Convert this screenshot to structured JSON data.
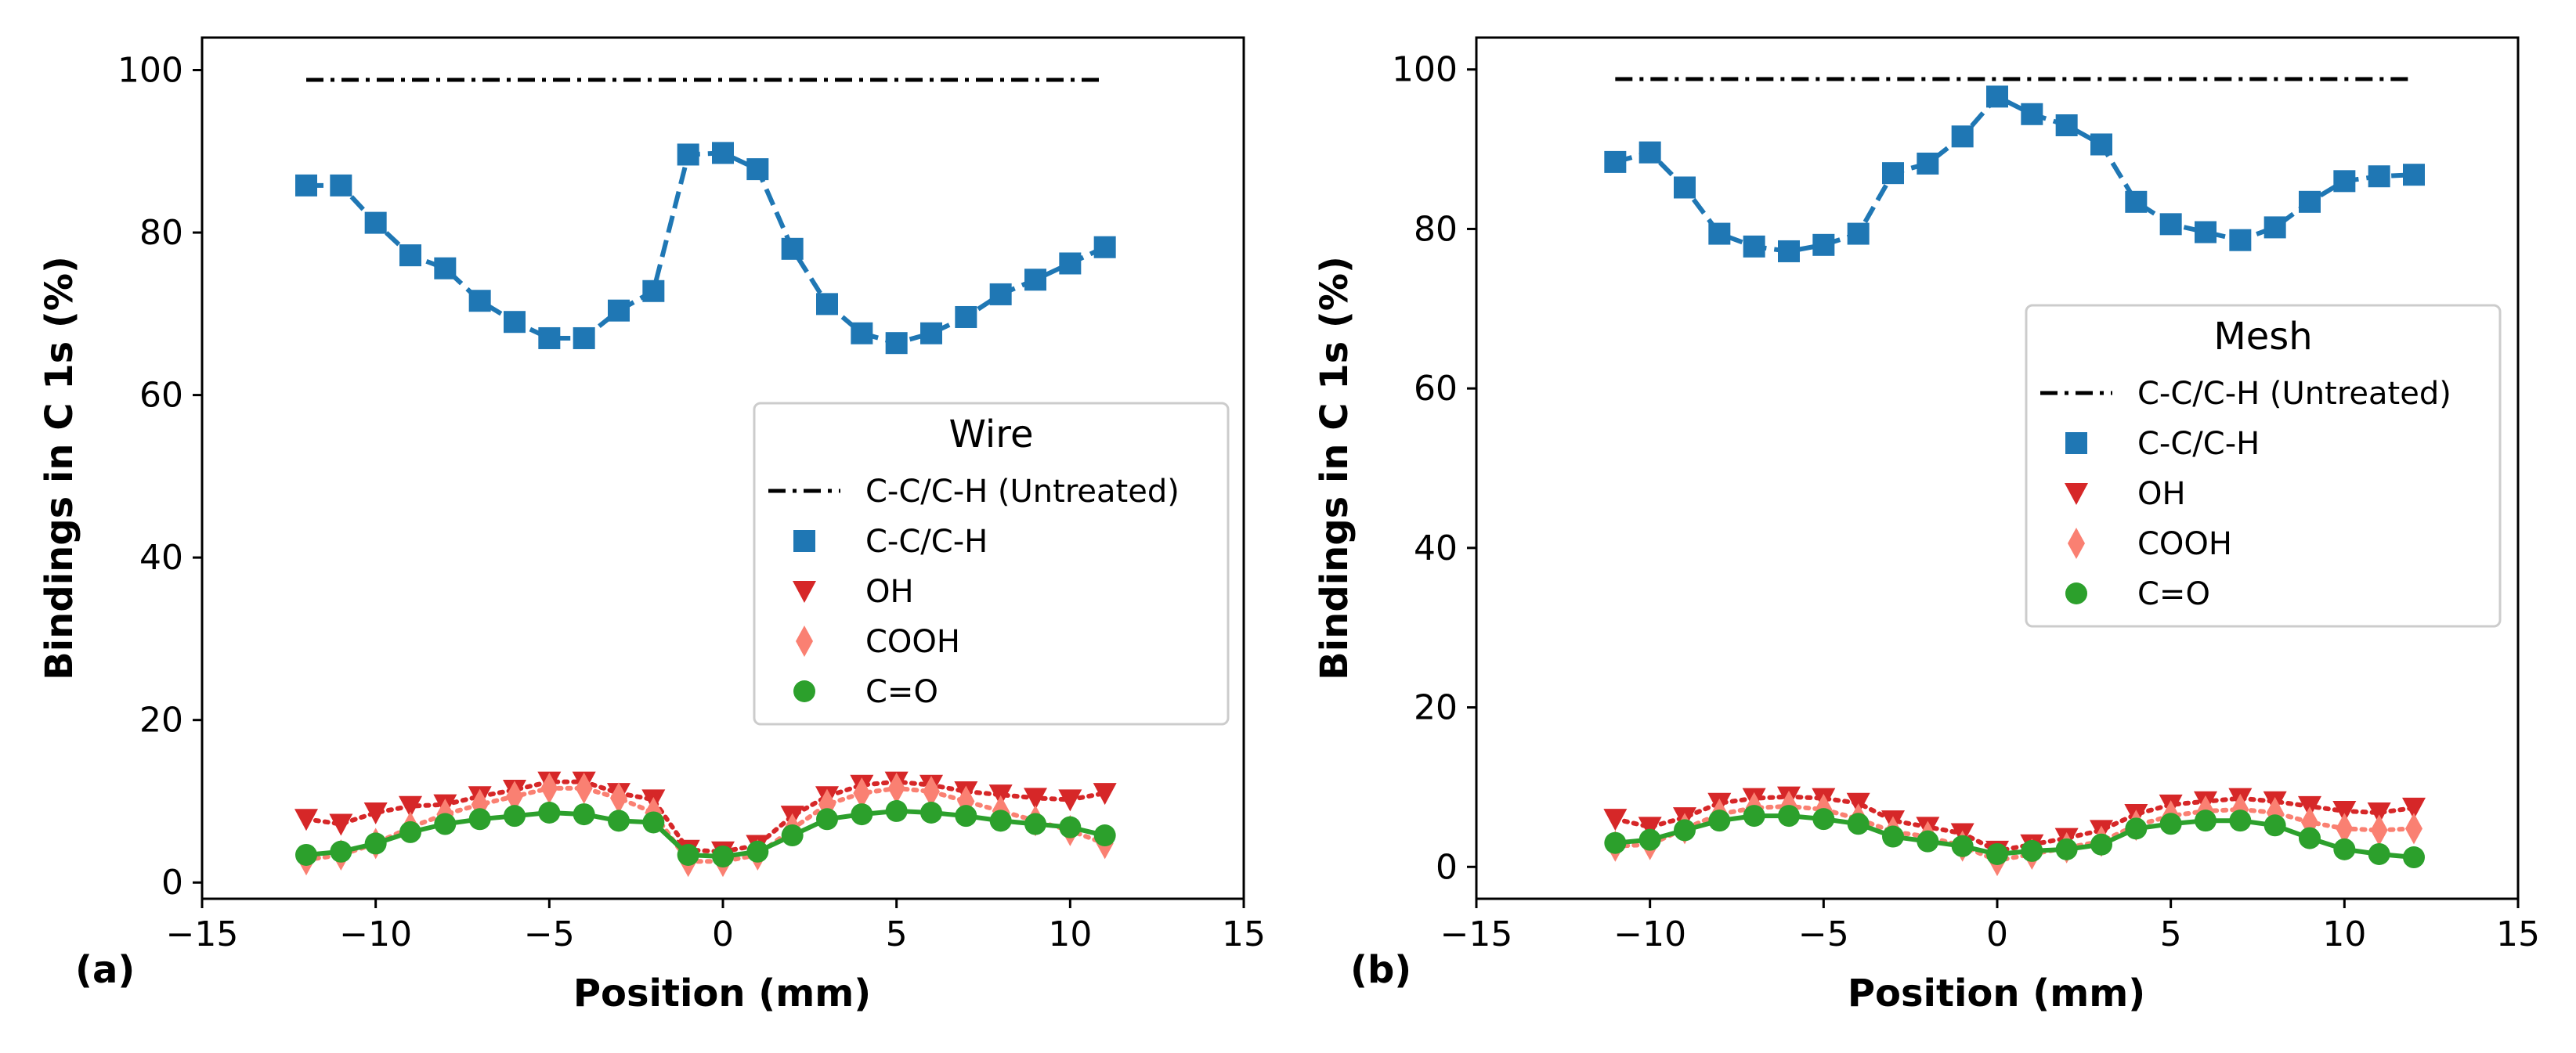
{
  "chart_data": [
    {
      "type": "line",
      "panel_label": "(a)",
      "legend_title": "Wire",
      "legend_position": "center-right",
      "xlabel": "Position (mm)",
      "ylabel": "Bindings in C 1s (%)",
      "xlim": [
        -15,
        15
      ],
      "ylim": [
        -2,
        104
      ],
      "xticks": [
        -15,
        -10,
        -5,
        0,
        5,
        10,
        15
      ],
      "yticks": [
        0,
        20,
        40,
        60,
        80,
        100
      ],
      "xtick_labels": [
        "−15",
        "−10",
        "−5",
        "0",
        "5",
        "10",
        "15"
      ],
      "ytick_labels": [
        "0",
        "20",
        "40",
        "60",
        "80",
        "100"
      ],
      "grid": false,
      "series": [
        {
          "name": "C-C/C-H (Untreated)",
          "kind": "hline",
          "color": "#000000",
          "linestyle": "dashdot",
          "x": [
            -12,
            11
          ],
          "values": [
            98.8,
            98.8
          ]
        },
        {
          "name": "C-C/C-H",
          "color": "#1f77b4",
          "marker": "square",
          "linestyle": "dashed",
          "x": [
            -12,
            -11,
            -10,
            -9,
            -8,
            -7,
            -6,
            -5,
            -4,
            -3,
            -2,
            -1,
            0,
            1,
            2,
            3,
            4,
            5,
            6,
            7,
            8,
            9,
            10,
            11
          ],
          "values": [
            85.8,
            85.8,
            81.2,
            77.2,
            75.6,
            71.6,
            69.0,
            67.0,
            67.0,
            70.4,
            72.8,
            89.6,
            89.8,
            87.8,
            78.0,
            71.2,
            67.6,
            66.4,
            67.6,
            69.6,
            72.4,
            74.2,
            76.2,
            78.2
          ]
        },
        {
          "name": "OH",
          "color": "#d62728",
          "marker": "triangle-down",
          "linestyle": "dotted",
          "x": [
            -12,
            -11,
            -10,
            -9,
            -8,
            -7,
            -6,
            -5,
            -4,
            -3,
            -2,
            -1,
            0,
            1,
            2,
            3,
            4,
            5,
            6,
            7,
            8,
            9,
            10,
            11
          ],
          "values": [
            7.8,
            7.2,
            8.6,
            9.4,
            9.6,
            10.6,
            11.4,
            12.4,
            12.4,
            11.0,
            10.2,
            4.0,
            3.8,
            4.6,
            8.2,
            10.6,
            12.0,
            12.4,
            12.0,
            11.2,
            10.8,
            10.4,
            10.2,
            11.0
          ]
        },
        {
          "name": "COOH",
          "color": "#fa8072",
          "marker": "thin-diamond",
          "linestyle": "dotted",
          "x": [
            -12,
            -11,
            -10,
            -9,
            -8,
            -7,
            -6,
            -5,
            -4,
            -3,
            -2,
            -1,
            0,
            1,
            2,
            3,
            4,
            5,
            6,
            7,
            8,
            9,
            10,
            11
          ],
          "values": [
            2.8,
            3.4,
            4.8,
            6.8,
            8.4,
            9.6,
            10.6,
            11.6,
            11.6,
            10.4,
            8.6,
            2.6,
            2.6,
            3.4,
            6.6,
            9.6,
            11.0,
            11.6,
            11.2,
            10.0,
            8.8,
            7.6,
            6.4,
            4.8
          ]
        },
        {
          "name": "C=O",
          "color": "#2ca02c",
          "marker": "circle",
          "linestyle": "solid",
          "x": [
            -12,
            -11,
            -10,
            -9,
            -8,
            -7,
            -6,
            -5,
            -4,
            -3,
            -2,
            -1,
            0,
            1,
            2,
            3,
            4,
            5,
            6,
            7,
            8,
            9,
            10,
            11
          ],
          "values": [
            3.4,
            3.8,
            4.8,
            6.2,
            7.2,
            7.8,
            8.2,
            8.6,
            8.4,
            7.6,
            7.4,
            3.4,
            3.2,
            3.8,
            5.8,
            7.8,
            8.4,
            8.8,
            8.6,
            8.2,
            7.6,
            7.2,
            6.8,
            5.8
          ]
        }
      ]
    },
    {
      "type": "line",
      "panel_label": "(b)",
      "legend_title": "Mesh",
      "legend_position": "center-right",
      "xlabel": "Position (mm)",
      "ylabel": "Bindings in C 1s (%)",
      "xlim": [
        -15,
        15
      ],
      "ylim": [
        -4,
        104
      ],
      "xticks": [
        -15,
        -10,
        -5,
        0,
        5,
        10,
        15
      ],
      "yticks": [
        0,
        20,
        40,
        60,
        80,
        100
      ],
      "xtick_labels": [
        "−15",
        "−10",
        "−5",
        "0",
        "5",
        "10",
        "15"
      ],
      "ytick_labels": [
        "0",
        "20",
        "40",
        "60",
        "80",
        "100"
      ],
      "grid": false,
      "series": [
        {
          "name": "C-C/C-H (Untreated)",
          "kind": "hline",
          "color": "#000000",
          "linestyle": "dashdot",
          "x": [
            -11,
            12
          ],
          "values": [
            98.8,
            98.8
          ]
        },
        {
          "name": "C-C/C-H",
          "color": "#1f77b4",
          "marker": "square",
          "linestyle": "dashed",
          "x": [
            -11,
            -10,
            -9,
            -8,
            -7,
            -6,
            -5,
            -4,
            -3,
            -2,
            -1,
            0,
            1,
            2,
            3,
            4,
            5,
            6,
            7,
            8,
            9,
            10,
            11,
            12
          ],
          "values": [
            88.4,
            89.6,
            85.2,
            79.4,
            77.8,
            77.2,
            78.0,
            79.4,
            87.0,
            88.2,
            91.6,
            96.6,
            94.4,
            93.0,
            90.6,
            83.4,
            80.6,
            79.6,
            78.6,
            80.2,
            83.4,
            86.0,
            86.6,
            86.8
          ]
        },
        {
          "name": "OH",
          "color": "#d62728",
          "marker": "triangle-down",
          "linestyle": "dotted",
          "x": [
            -11,
            -10,
            -9,
            -8,
            -7,
            -6,
            -5,
            -4,
            -3,
            -2,
            -1,
            0,
            1,
            2,
            3,
            4,
            5,
            6,
            7,
            8,
            9,
            10,
            11,
            12
          ],
          "values": [
            6.0,
            5.0,
            6.2,
            8.0,
            8.6,
            8.8,
            8.6,
            8.0,
            5.8,
            5.0,
            4.2,
            2.0,
            2.8,
            3.6,
            4.6,
            6.6,
            7.8,
            8.2,
            8.6,
            8.2,
            7.6,
            7.0,
            6.8,
            7.4
          ]
        },
        {
          "name": "COOH",
          "color": "#fa8072",
          "marker": "thin-diamond",
          "linestyle": "dotted",
          "x": [
            -11,
            -10,
            -9,
            -8,
            -7,
            -6,
            -5,
            -4,
            -3,
            -2,
            -1,
            0,
            1,
            2,
            3,
            4,
            5,
            6,
            7,
            8,
            9,
            10,
            11,
            12
          ],
          "values": [
            2.6,
            2.8,
            4.8,
            6.6,
            7.4,
            7.6,
            7.2,
            6.0,
            4.4,
            3.8,
            2.6,
            0.8,
            1.6,
            2.4,
            3.2,
            5.2,
            6.4,
            7.0,
            7.2,
            6.8,
            5.6,
            4.8,
            4.6,
            4.8
          ]
        },
        {
          "name": "C=O",
          "color": "#2ca02c",
          "marker": "circle",
          "linestyle": "solid",
          "x": [
            -11,
            -10,
            -9,
            -8,
            -7,
            -6,
            -5,
            -4,
            -3,
            -2,
            -1,
            0,
            1,
            2,
            3,
            4,
            5,
            6,
            7,
            8,
            9,
            10,
            11,
            12
          ],
          "values": [
            3.0,
            3.4,
            4.6,
            5.8,
            6.4,
            6.4,
            6.0,
            5.4,
            3.8,
            3.2,
            2.6,
            1.6,
            2.0,
            2.2,
            2.8,
            4.8,
            5.4,
            5.8,
            5.8,
            5.2,
            3.6,
            2.2,
            1.6,
            1.2
          ]
        }
      ]
    }
  ]
}
